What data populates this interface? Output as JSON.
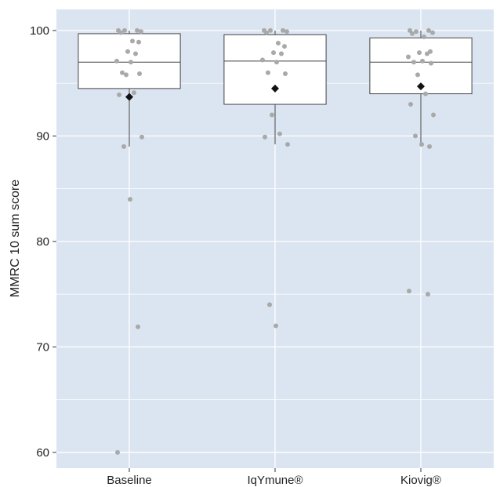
{
  "chart_data": {
    "type": "box",
    "title": "",
    "xlabel": "",
    "ylabel": "MMRC 10 sum score",
    "ylim": [
      58.5,
      102
    ],
    "yticks": [
      60,
      70,
      80,
      90,
      100
    ],
    "categories": [
      "Baseline",
      "IqYmune®",
      "Kiovig®"
    ],
    "grid": true,
    "legend": "none",
    "colors": {
      "panel": "#dbe5f1",
      "grid": "#ffffff",
      "box_fill": "#ffffff",
      "box_stroke": "#444444",
      "point": "#a9a9a9",
      "mean": "#111111"
    },
    "boxes": [
      {
        "category": "Baseline",
        "q1": 94.5,
        "median": 97.0,
        "q3": 99.7,
        "whisker_low": 89.0,
        "whisker_high": 100.0,
        "mean": 93.7
      },
      {
        "category": "IqYmune®",
        "q1": 93.0,
        "median": 97.1,
        "q3": 99.6,
        "whisker_low": 89.2,
        "whisker_high": 100.0,
        "mean": 94.5
      },
      {
        "category": "Kiovig®",
        "q1": 94.0,
        "median": 97.0,
        "q3": 99.3,
        "whisker_low": 89.0,
        "whisker_high": 100.0,
        "mean": 94.7
      }
    ],
    "points": [
      {
        "category": "Baseline",
        "values": [
          100,
          100,
          100,
          99.9,
          99.8,
          99.0,
          98.9,
          98.0,
          97.8,
          97.1,
          97.0,
          96.0,
          95.9,
          95.8,
          94.1,
          93.9,
          89.9,
          89.0,
          84.0,
          71.9,
          60.0
        ]
      },
      {
        "category": "IqYmune®",
        "values": [
          100,
          100,
          100,
          99.9,
          99.8,
          98.8,
          98.5,
          97.9,
          97.8,
          97.2,
          97.0,
          96.0,
          95.9,
          92.0,
          90.2,
          89.9,
          89.2,
          74.0,
          72.0
        ]
      },
      {
        "category": "Kiovig®",
        "values": [
          100,
          100,
          99.9,
          99.8,
          99.7,
          99.4,
          98.0,
          97.9,
          97.8,
          97.5,
          97.1,
          97.0,
          96.9,
          95.8,
          94.0,
          93.0,
          92.0,
          90.0,
          89.2,
          89.0,
          75.3,
          75.0
        ]
      }
    ]
  }
}
